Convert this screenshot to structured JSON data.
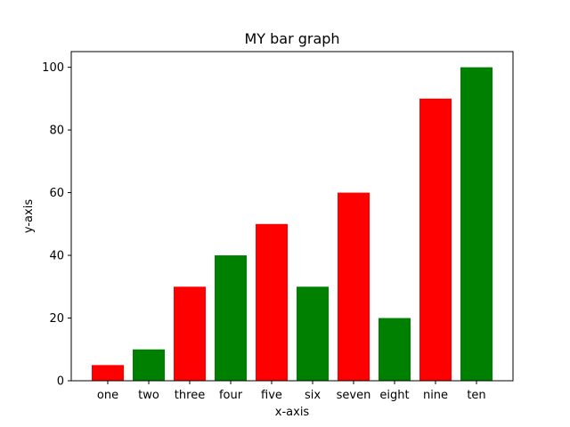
{
  "chart_data": {
    "type": "bar",
    "title": "MY bar graph",
    "xlabel": "x-axis",
    "ylabel": "y-axis",
    "ylim": [
      0,
      105
    ],
    "yticks": [
      0,
      20,
      40,
      60,
      80,
      100
    ],
    "grid": false,
    "legend": "none",
    "categories": [
      "one",
      "two",
      "three",
      "four",
      "five",
      "six",
      "seven",
      "eight",
      "nine",
      "ten"
    ],
    "values": [
      5,
      10,
      30,
      40,
      50,
      30,
      60,
      20,
      90,
      100
    ],
    "bar_colors": [
      "#ff0000",
      "#008000",
      "#ff0000",
      "#008000",
      "#ff0000",
      "#008000",
      "#ff0000",
      "#008000",
      "#ff0000",
      "#008000"
    ]
  }
}
